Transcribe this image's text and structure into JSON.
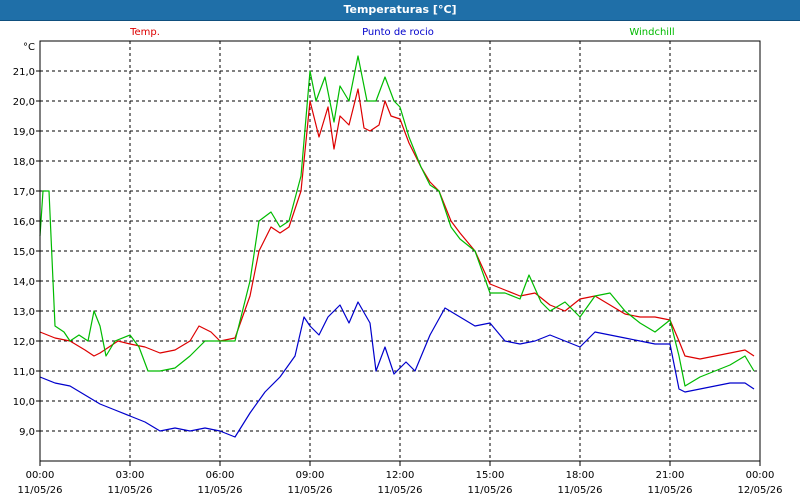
{
  "window": {
    "title": "Temperaturas [°C]"
  },
  "chart_data": {
    "type": "line",
    "title": "Temperaturas [°C]",
    "ylabel": "°C",
    "xlabel": "",
    "ylim": [
      8.0,
      22.0
    ],
    "xlim": [
      0,
      24
    ],
    "grid": true,
    "legend": "top",
    "y_ticks": [
      9.0,
      10.0,
      11.0,
      12.0,
      13.0,
      14.0,
      15.0,
      16.0,
      17.0,
      18.0,
      19.0,
      20.0,
      21.0
    ],
    "y_tick_labels": [
      "9,0",
      "10,0",
      "11,0",
      "12,0",
      "13,0",
      "14,0",
      "15,0",
      "16,0",
      "17,0",
      "18,0",
      "19,0",
      "20,0",
      "21,0"
    ],
    "x_ticks": [
      0,
      3,
      6,
      9,
      12,
      15,
      18,
      21,
      24
    ],
    "x_tick_times": [
      "00:00",
      "03:00",
      "06:00",
      "09:00",
      "12:00",
      "15:00",
      "18:00",
      "21:00",
      "00:00"
    ],
    "x_tick_dates": [
      "11/05/26",
      "11/05/26",
      "11/05/26",
      "11/05/26",
      "11/05/26",
      "11/05/26",
      "11/05/26",
      "11/05/26",
      "12/05/26"
    ],
    "series": [
      {
        "name": "Temp.",
        "color": "#dd0000",
        "points": [
          [
            0,
            12.3
          ],
          [
            0.5,
            12.1
          ],
          [
            1,
            12.0
          ],
          [
            1.5,
            11.7
          ],
          [
            1.8,
            11.5
          ],
          [
            2,
            11.6
          ],
          [
            2.3,
            11.8
          ],
          [
            2.6,
            12.0
          ],
          [
            3,
            11.9
          ],
          [
            3.5,
            11.8
          ],
          [
            4,
            11.6
          ],
          [
            4.5,
            11.7
          ],
          [
            5,
            12.0
          ],
          [
            5.3,
            12.5
          ],
          [
            5.7,
            12.3
          ],
          [
            6,
            12.0
          ],
          [
            6.5,
            12.1
          ],
          [
            7,
            13.5
          ],
          [
            7.3,
            15.0
          ],
          [
            7.7,
            15.8
          ],
          [
            8,
            15.6
          ],
          [
            8.3,
            15.8
          ],
          [
            8.7,
            17.0
          ],
          [
            9,
            20.0
          ],
          [
            9.3,
            18.8
          ],
          [
            9.6,
            19.8
          ],
          [
            9.8,
            18.4
          ],
          [
            10,
            19.5
          ],
          [
            10.3,
            19.2
          ],
          [
            10.6,
            20.4
          ],
          [
            10.8,
            19.1
          ],
          [
            11,
            19.0
          ],
          [
            11.3,
            19.2
          ],
          [
            11.5,
            20.0
          ],
          [
            11.7,
            19.5
          ],
          [
            12,
            19.4
          ],
          [
            12.3,
            18.6
          ],
          [
            12.7,
            17.8
          ],
          [
            13,
            17.3
          ],
          [
            13.3,
            17.0
          ],
          [
            13.7,
            16.0
          ],
          [
            14,
            15.6
          ],
          [
            14.5,
            15.0
          ],
          [
            15,
            13.9
          ],
          [
            15.5,
            13.7
          ],
          [
            16,
            13.5
          ],
          [
            16.5,
            13.6
          ],
          [
            17,
            13.2
          ],
          [
            17.5,
            13.0
          ],
          [
            18,
            13.4
          ],
          [
            18.5,
            13.5
          ],
          [
            19,
            13.2
          ],
          [
            19.5,
            12.9
          ],
          [
            20,
            12.8
          ],
          [
            20.5,
            12.8
          ],
          [
            21,
            12.7
          ],
          [
            21.3,
            12.0
          ],
          [
            21.5,
            11.5
          ],
          [
            22,
            11.4
          ],
          [
            22.5,
            11.5
          ],
          [
            23,
            11.6
          ],
          [
            23.5,
            11.7
          ],
          [
            23.8,
            11.5
          ]
        ]
      },
      {
        "name": "Punto de rocio",
        "color": "#0000cc",
        "points": [
          [
            0,
            10.8
          ],
          [
            0.5,
            10.6
          ],
          [
            1,
            10.5
          ],
          [
            1.5,
            10.2
          ],
          [
            2,
            9.9
          ],
          [
            2.5,
            9.7
          ],
          [
            3,
            9.5
          ],
          [
            3.5,
            9.3
          ],
          [
            4,
            9.0
          ],
          [
            4.5,
            9.1
          ],
          [
            5,
            9.0
          ],
          [
            5.5,
            9.1
          ],
          [
            6,
            9.0
          ],
          [
            6.5,
            8.8
          ],
          [
            7,
            9.6
          ],
          [
            7.5,
            10.3
          ],
          [
            8,
            10.8
          ],
          [
            8.5,
            11.5
          ],
          [
            8.8,
            12.8
          ],
          [
            9,
            12.5
          ],
          [
            9.3,
            12.2
          ],
          [
            9.6,
            12.8
          ],
          [
            10,
            13.2
          ],
          [
            10.3,
            12.6
          ],
          [
            10.6,
            13.3
          ],
          [
            11,
            12.6
          ],
          [
            11.2,
            11.0
          ],
          [
            11.5,
            11.8
          ],
          [
            11.8,
            10.9
          ],
          [
            12.2,
            11.3
          ],
          [
            12.5,
            11.0
          ],
          [
            13,
            12.2
          ],
          [
            13.5,
            13.1
          ],
          [
            14,
            12.8
          ],
          [
            14.5,
            12.5
          ],
          [
            15,
            12.6
          ],
          [
            15.5,
            12.0
          ],
          [
            16,
            11.9
          ],
          [
            16.5,
            12.0
          ],
          [
            17,
            12.2
          ],
          [
            17.5,
            12.0
          ],
          [
            18,
            11.8
          ],
          [
            18.5,
            12.3
          ],
          [
            19,
            12.2
          ],
          [
            19.5,
            12.1
          ],
          [
            20,
            12.0
          ],
          [
            20.5,
            11.9
          ],
          [
            21,
            11.9
          ],
          [
            21.3,
            10.4
          ],
          [
            21.5,
            10.3
          ],
          [
            22,
            10.4
          ],
          [
            22.5,
            10.5
          ],
          [
            23,
            10.6
          ],
          [
            23.5,
            10.6
          ],
          [
            23.8,
            10.4
          ]
        ]
      },
      {
        "name": "Windchill",
        "color": "#00bb00",
        "points": [
          [
            0,
            15.5
          ],
          [
            0.1,
            17.0
          ],
          [
            0.3,
            17.0
          ],
          [
            0.5,
            12.5
          ],
          [
            0.8,
            12.3
          ],
          [
            1,
            12.0
          ],
          [
            1.3,
            12.2
          ],
          [
            1.6,
            12.0
          ],
          [
            1.8,
            13.0
          ],
          [
            2,
            12.5
          ],
          [
            2.2,
            11.5
          ],
          [
            2.5,
            12.0
          ],
          [
            3,
            12.2
          ],
          [
            3.3,
            11.8
          ],
          [
            3.6,
            11.0
          ],
          [
            4,
            11.0
          ],
          [
            4.5,
            11.1
          ],
          [
            5,
            11.5
          ],
          [
            5.5,
            12.0
          ],
          [
            6,
            12.0
          ],
          [
            6.5,
            12.0
          ],
          [
            7,
            14.0
          ],
          [
            7.3,
            16.0
          ],
          [
            7.7,
            16.3
          ],
          [
            8,
            15.8
          ],
          [
            8.3,
            16.0
          ],
          [
            8.7,
            17.5
          ],
          [
            9,
            21.0
          ],
          [
            9.2,
            20.0
          ],
          [
            9.5,
            20.8
          ],
          [
            9.8,
            19.3
          ],
          [
            10,
            20.5
          ],
          [
            10.3,
            20.0
          ],
          [
            10.6,
            21.5
          ],
          [
            10.9,
            20.0
          ],
          [
            11.2,
            20.0
          ],
          [
            11.5,
            20.8
          ],
          [
            11.8,
            20.0
          ],
          [
            12,
            19.8
          ],
          [
            12.3,
            18.8
          ],
          [
            12.7,
            17.8
          ],
          [
            13,
            17.2
          ],
          [
            13.3,
            17.0
          ],
          [
            13.7,
            15.8
          ],
          [
            14,
            15.4
          ],
          [
            14.5,
            15.0
          ],
          [
            15,
            13.6
          ],
          [
            15.5,
            13.6
          ],
          [
            16,
            13.4
          ],
          [
            16.3,
            14.2
          ],
          [
            16.7,
            13.3
          ],
          [
            17,
            13.0
          ],
          [
            17.5,
            13.3
          ],
          [
            18,
            12.8
          ],
          [
            18.5,
            13.5
          ],
          [
            19,
            13.6
          ],
          [
            19.5,
            13.0
          ],
          [
            20,
            12.6
          ],
          [
            20.5,
            12.3
          ],
          [
            21,
            12.7
          ],
          [
            21.3,
            11.5
          ],
          [
            21.5,
            10.5
          ],
          [
            22,
            10.8
          ],
          [
            22.5,
            11.0
          ],
          [
            23,
            11.2
          ],
          [
            23.5,
            11.5
          ],
          [
            23.8,
            11.0
          ]
        ]
      }
    ]
  }
}
